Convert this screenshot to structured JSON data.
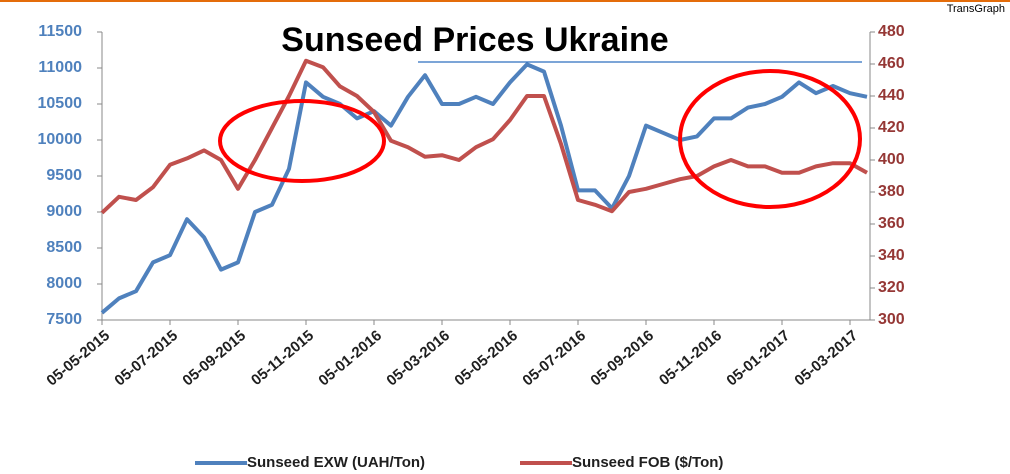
{
  "chart_data": {
    "type": "line",
    "title": "Sunseed Prices Ukraine",
    "source": "TransGraph",
    "categories": [
      "05-05-2015",
      null,
      null,
      null,
      "05-07-2015",
      null,
      null,
      null,
      "05-09-2015",
      null,
      null,
      null,
      "05-11-2015",
      null,
      null,
      null,
      "05-01-2016",
      null,
      null,
      null,
      "05-03-2016",
      null,
      null,
      null,
      "05-05-2016",
      null,
      null,
      null,
      "05-07-2016",
      null,
      null,
      null,
      "05-09-2016",
      null,
      null,
      null,
      "05-11-2016",
      null,
      null,
      null,
      "05-01-2017",
      null,
      null,
      null,
      "05-03-2017",
      null
    ],
    "series": [
      {
        "name": "Sunseed EXW (UAH/Ton)",
        "color": "#4f81bd",
        "values": [
          7600,
          7800,
          7900,
          8300,
          8400,
          8900,
          8650,
          8200,
          8300,
          9000,
          9100,
          9600,
          10800,
          10600,
          10500,
          10300,
          10400,
          10200,
          10600,
          10900,
          10500,
          10500,
          10600,
          10500,
          10800,
          11050,
          10950,
          10200,
          9300,
          9300,
          9050,
          9500,
          10200,
          10100,
          10000,
          10050,
          10300,
          10300,
          10450,
          10500,
          10600,
          10800,
          10650,
          10750,
          10650,
          10600
        ]
      },
      {
        "name": "Sunseed FOB ($/Ton)",
        "color": "#c0504d",
        "axis": "y2",
        "values": [
          367,
          377,
          375,
          383,
          397,
          401,
          406,
          400,
          382,
          400,
          420,
          440,
          462,
          458,
          446,
          440,
          430,
          412,
          408,
          402,
          403,
          400,
          408,
          413,
          425,
          440,
          440,
          410,
          375,
          372,
          368,
          380,
          382,
          385,
          388,
          390,
          396,
          400,
          396,
          396,
          392,
          392,
          396,
          398,
          398,
          392
        ]
      }
    ],
    "ylim": [
      7500,
      11500
    ],
    "yticks": [
      7500,
      8000,
      8500,
      9000,
      9500,
      10000,
      10500,
      11000,
      11500
    ],
    "y2lim": [
      300,
      480
    ],
    "y2ticks": [
      300,
      320,
      340,
      360,
      380,
      400,
      420,
      440,
      460,
      480
    ]
  }
}
